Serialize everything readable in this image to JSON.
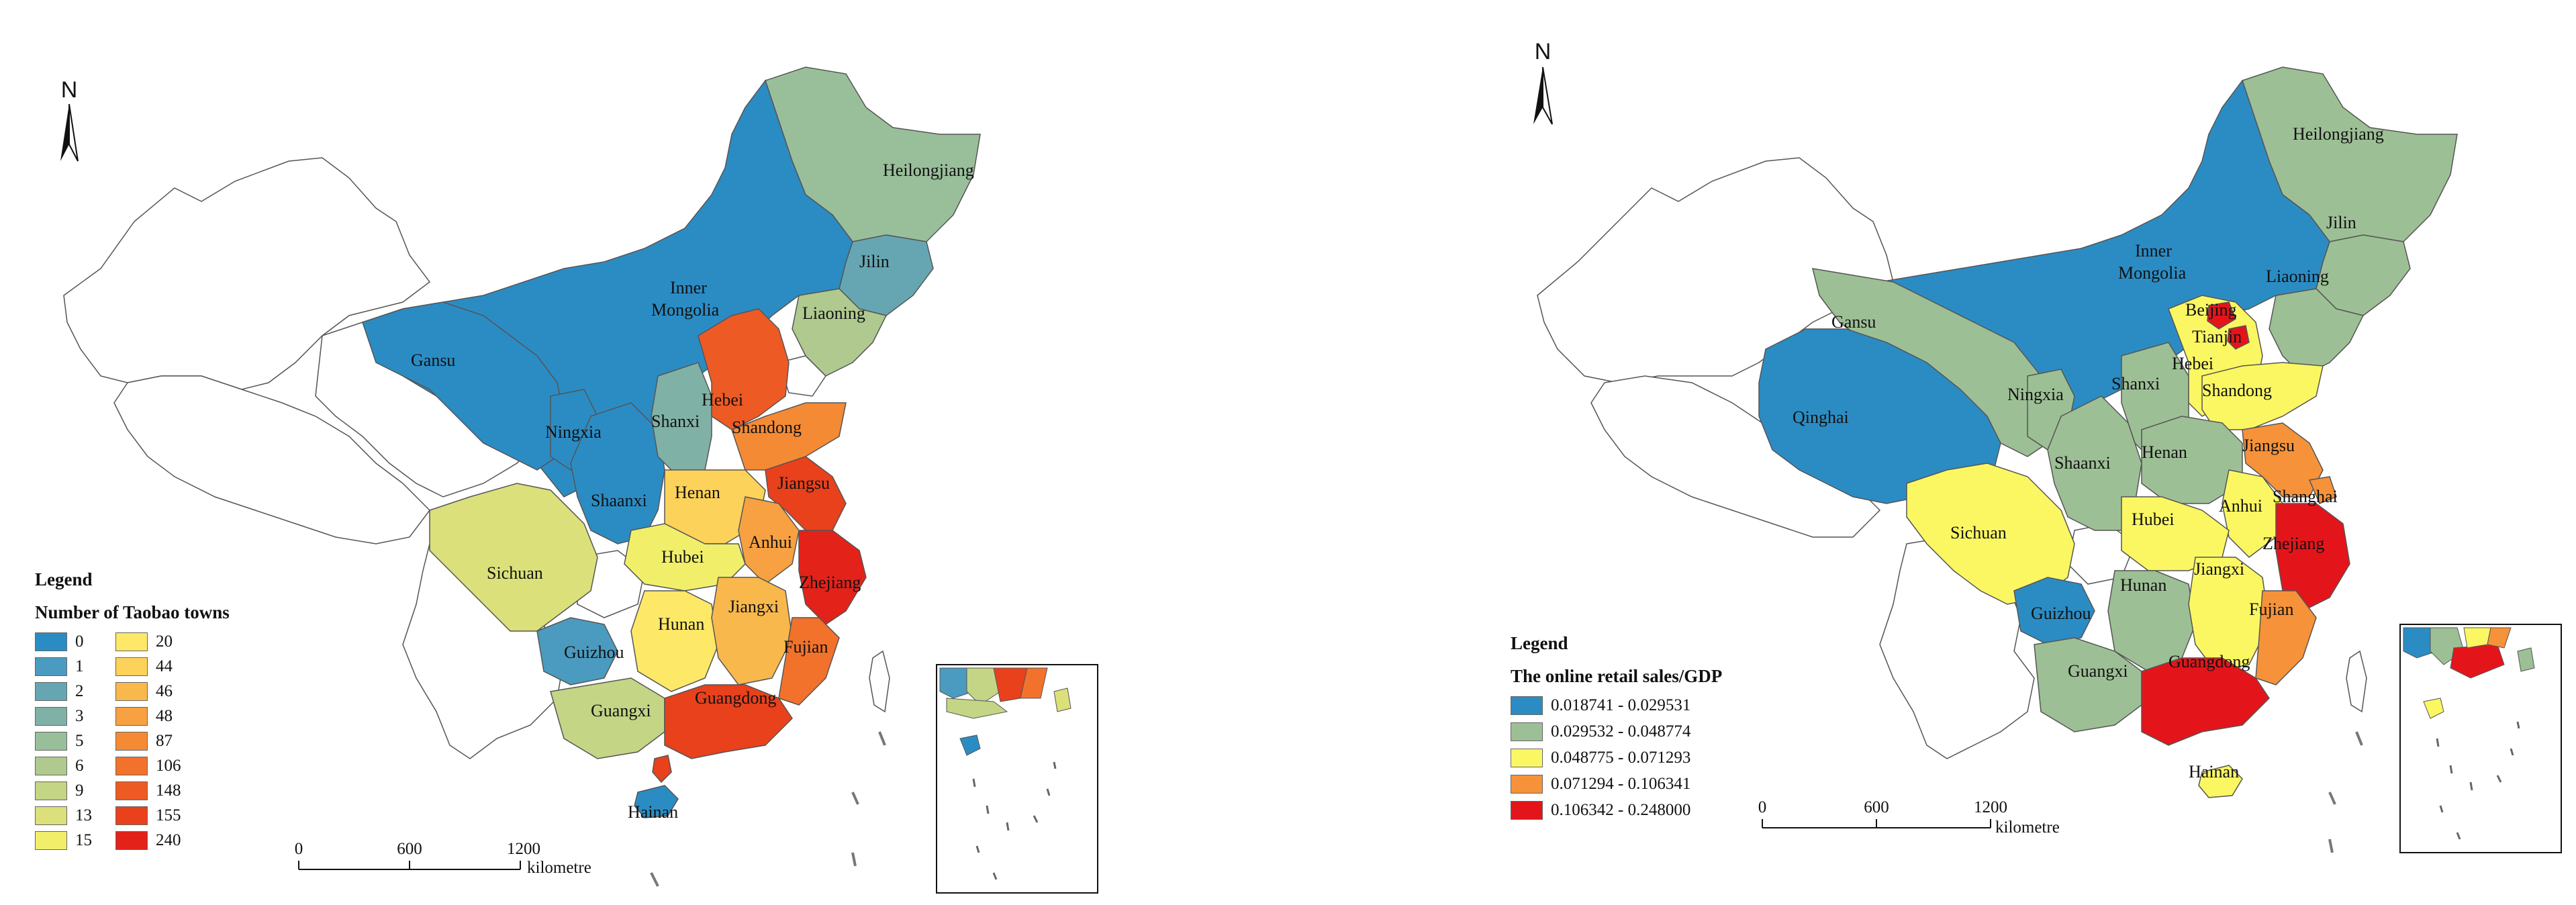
{
  "left_map": {
    "north_label": "N",
    "legend_title": "Legend",
    "legend_subtitle": "Number of Taobao towns",
    "legend_items": [
      {
        "label": "0",
        "color": "#2b8cc4"
      },
      {
        "label": "1",
        "color": "#4a9bbf"
      },
      {
        "label": "2",
        "color": "#66a6b3"
      },
      {
        "label": "3",
        "color": "#80b1a6"
      },
      {
        "label": "5",
        "color": "#99bf9a"
      },
      {
        "label": "6",
        "color": "#afc98f"
      },
      {
        "label": "9",
        "color": "#c4d585"
      },
      {
        "label": "13",
        "color": "#dbe07a"
      },
      {
        "label": "15",
        "color": "#f1ef6a"
      },
      {
        "label": "20",
        "color": "#fde868"
      },
      {
        "label": "44",
        "color": "#fdd25a"
      },
      {
        "label": "46",
        "color": "#f9b84c"
      },
      {
        "label": "48",
        "color": "#f7a142"
      },
      {
        "label": "87",
        "color": "#f58a35"
      },
      {
        "label": "106",
        "color": "#f2722c"
      },
      {
        "label": "148",
        "color": "#ee5a24"
      },
      {
        "label": "155",
        "color": "#e8411c"
      },
      {
        "label": "240",
        "color": "#e3221a"
      }
    ],
    "provinces": {
      "heilongjiang": "Heilongjiang",
      "jilin": "Jilin",
      "liaoning": "Liaoning",
      "inner_mongolia": "Inner\nMongolia",
      "gansu": "Gansu",
      "ningxia": "Ningxia",
      "shanxi": "Shanxi",
      "hebei": "Hebei",
      "shandong": "Shandong",
      "shaanxi": "Shaanxi",
      "henan": "Henan",
      "jiangsu": "Jiangsu",
      "anhui": "Anhui",
      "sichuan": "Sichuan",
      "hubei": "Hubei",
      "zhejiang": "Zhejiang",
      "guizhou": "Guizhou",
      "hunan": "Hunan",
      "jiangxi": "Jiangxi",
      "fujian": "Fujian",
      "guangxi": "Guangxi",
      "guangdong": "Guangdong",
      "hainan": "Hainan"
    },
    "scale_ticks": [
      "0",
      "600",
      "1200"
    ],
    "scale_unit": "kilometre"
  },
  "right_map": {
    "north_label": "N",
    "legend_title": "Legend",
    "legend_subtitle": "The online retail sales/GDP",
    "legend_items": [
      {
        "label": "0.018741 - 0.029531",
        "color": "#2b8cc4"
      },
      {
        "label": "0.029532 - 0.048774",
        "color": "#9dbf95"
      },
      {
        "label": "0.048775 - 0.071293",
        "color": "#fbf763"
      },
      {
        "label": "0.071294 - 0.106341",
        "color": "#f6923a"
      },
      {
        "label": "0.106342 - 0.248000",
        "color": "#e3151b"
      }
    ],
    "provinces": {
      "heilongjiang": "Heilongjiang",
      "jilin": "Jilin",
      "liaoning": "Liaoning",
      "inner_mongolia": "Inner\nMongolia",
      "gansu": "Gansu",
      "beijing": "Beijing",
      "tianjin": "Tianjin",
      "hebei": "Hebei",
      "shandong": "Shandong",
      "qinghai": "Qinghai",
      "ningxia": "Ningxia",
      "shanxi": "Shanxi",
      "henan": "Henan",
      "jiangsu": "Jiangsu",
      "shaanxi": "Shaanxi",
      "shanghai": "Shanghai",
      "sichuan": "Sichuan",
      "hubei": "Hubei",
      "anhui": "Anhui",
      "zhejiang": "Zhejiang",
      "hunan": "Hunan",
      "jiangxi": "Jiangxi",
      "guizhou": "Guizhou",
      "fujian": "Fujian",
      "guangxi": "Guangxi",
      "guangdong": "Guangdong",
      "hainan": "Hainan"
    },
    "scale_ticks": [
      "0",
      "600",
      "1200"
    ],
    "scale_unit": "kilometre"
  }
}
